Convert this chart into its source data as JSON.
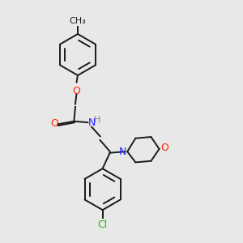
{
  "background_color": "#e8e8e8",
  "bond_color": "#1a1a1a",
  "atom_colors": {
    "O": "#ff2200",
    "N": "#2222ff",
    "Cl": "#22bb00",
    "C": "#1a1a1a",
    "H": "#888888"
  },
  "lw": 1.4,
  "fs": 8.5
}
